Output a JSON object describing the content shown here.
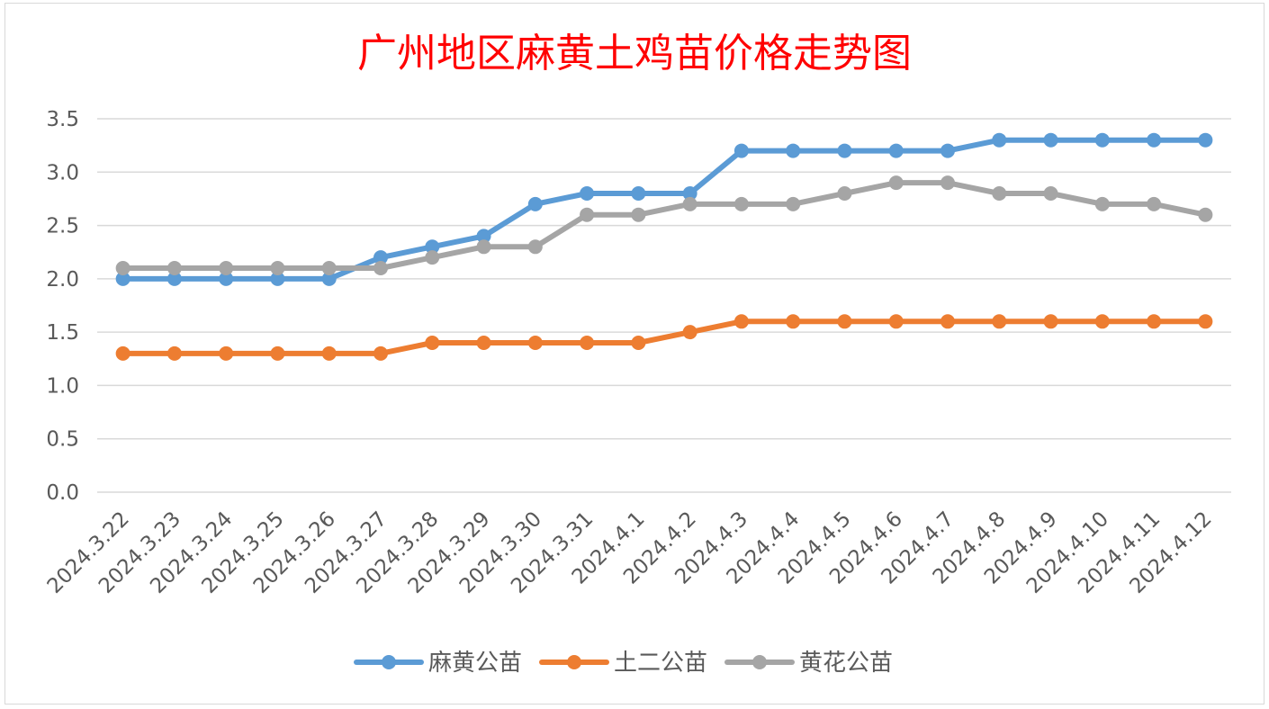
{
  "chart_data": {
    "type": "line",
    "title": "广州地区麻黄土鸡苗价格走势图",
    "xlabel": "",
    "ylabel": "",
    "ylim": [
      0,
      3.5
    ],
    "yticks": [
      "0.0",
      "0.5",
      "1.0",
      "1.5",
      "2.0",
      "2.5",
      "3.0",
      "3.5"
    ],
    "grid": true,
    "legend_position": "bottom",
    "categories": [
      "2024.3.22",
      "2024.3.23",
      "2024.3.24",
      "2024.3.25",
      "2024.3.26",
      "2024.3.27",
      "2024.3.28",
      "2024.3.29",
      "2024.3.30",
      "2024.3.31",
      "2024.4.1",
      "2024.4.2",
      "2024.4.3",
      "2024.4.4",
      "2024.4.5",
      "2024.4.6",
      "2024.4.7",
      "2024.4.8",
      "2024.4.9",
      "2024.4.10",
      "2024.4.11",
      "2024.4.12"
    ],
    "series": [
      {
        "name": "麻黄公苗",
        "color": "#5b9bd5",
        "values": [
          2.0,
          2.0,
          2.0,
          2.0,
          2.0,
          2.2,
          2.3,
          2.4,
          2.7,
          2.8,
          2.8,
          2.8,
          3.2,
          3.2,
          3.2,
          3.2,
          3.2,
          3.3,
          3.3,
          3.3,
          3.3,
          3.3
        ]
      },
      {
        "name": "土二公苗",
        "color": "#ed7d31",
        "values": [
          1.3,
          1.3,
          1.3,
          1.3,
          1.3,
          1.3,
          1.4,
          1.4,
          1.4,
          1.4,
          1.4,
          1.5,
          1.6,
          1.6,
          1.6,
          1.6,
          1.6,
          1.6,
          1.6,
          1.6,
          1.6,
          1.6
        ]
      },
      {
        "name": "黄花公苗",
        "color": "#a5a5a5",
        "values": [
          2.1,
          2.1,
          2.1,
          2.1,
          2.1,
          2.1,
          2.2,
          2.3,
          2.3,
          2.6,
          2.6,
          2.7,
          2.7,
          2.7,
          2.8,
          2.9,
          2.9,
          2.8,
          2.8,
          2.7,
          2.7,
          2.6
        ]
      }
    ]
  }
}
